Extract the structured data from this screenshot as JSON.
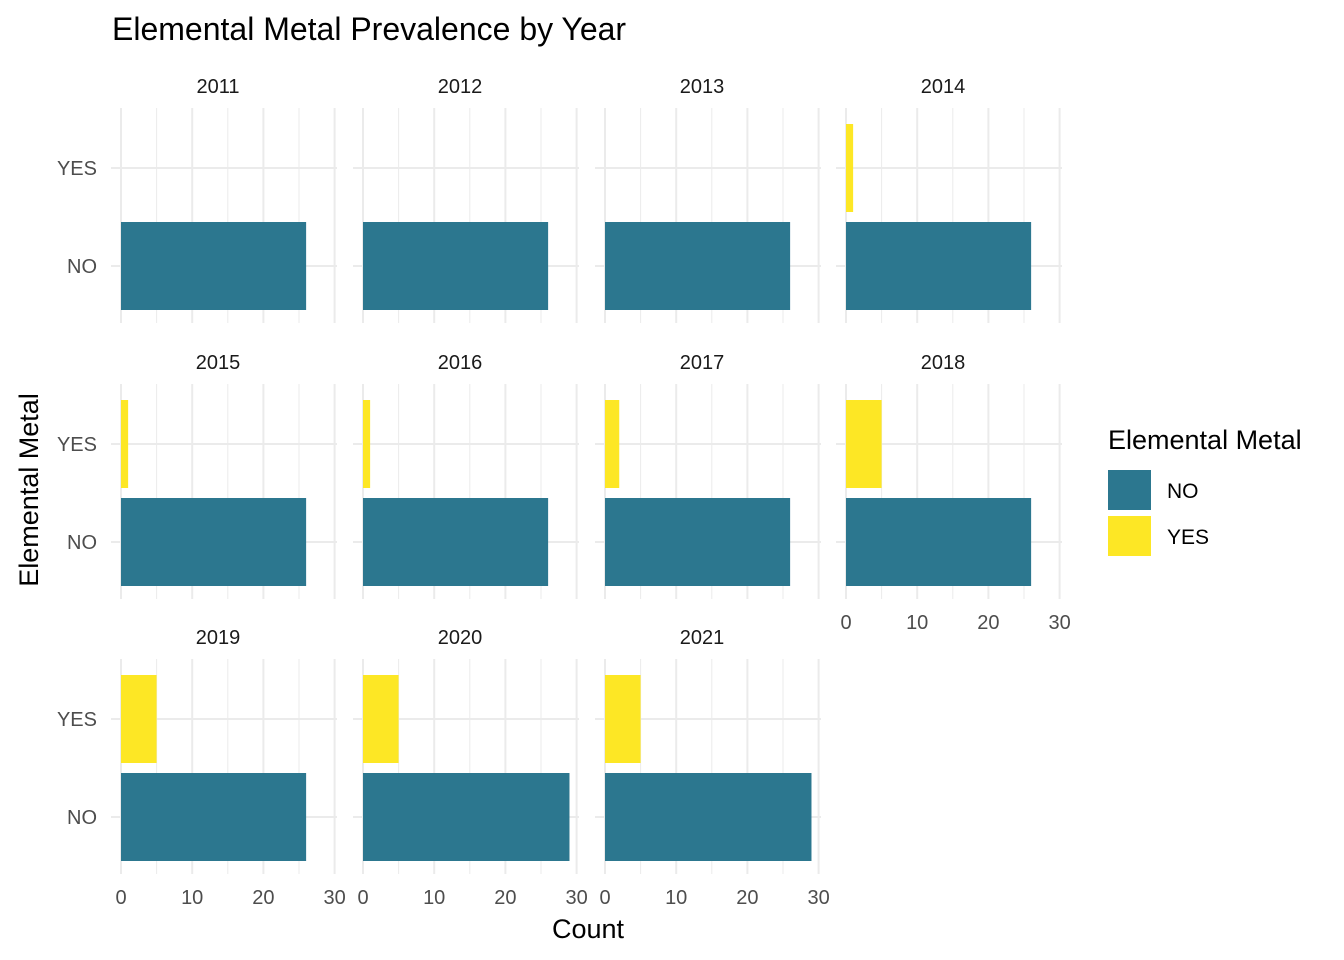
{
  "chart_data": {
    "type": "bar",
    "orientation": "horizontal",
    "title": "Elemental Metal Prevalence by Year",
    "xlabel": "Count",
    "ylabel": "Elemental Metal",
    "xlim": [
      0,
      30
    ],
    "x_ticks": [
      0,
      10,
      20,
      30
    ],
    "categories": [
      "NO",
      "YES"
    ],
    "grid": true,
    "legend": {
      "title": "Elemental Metal",
      "position": "right",
      "entries": [
        {
          "label": "NO",
          "color": "#2c778f"
        },
        {
          "label": "YES",
          "color": "#fde725"
        }
      ]
    },
    "facets": [
      {
        "year": "2011",
        "NO": 26,
        "YES": 0
      },
      {
        "year": "2012",
        "NO": 26,
        "YES": 0
      },
      {
        "year": "2013",
        "NO": 26,
        "YES": 0
      },
      {
        "year": "2014",
        "NO": 26,
        "YES": 1
      },
      {
        "year": "2015",
        "NO": 26,
        "YES": 1
      },
      {
        "year": "2016",
        "NO": 26,
        "YES": 1
      },
      {
        "year": "2017",
        "NO": 26,
        "YES": 2
      },
      {
        "year": "2018",
        "NO": 26,
        "YES": 5
      },
      {
        "year": "2019",
        "NO": 26,
        "YES": 5
      },
      {
        "year": "2020",
        "NO": 29,
        "YES": 5
      },
      {
        "year": "2021",
        "NO": 29,
        "YES": 5
      }
    ]
  }
}
